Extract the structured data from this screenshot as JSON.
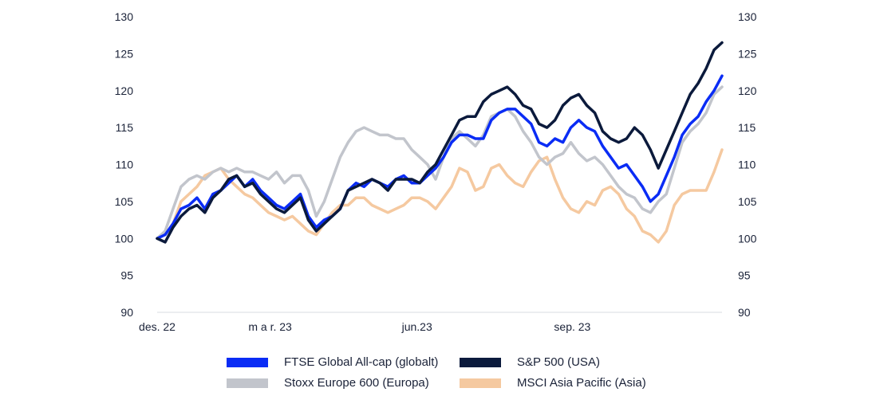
{
  "chart_data": {
    "type": "line",
    "title": "",
    "xlabel": "",
    "ylabel": "",
    "ylim": [
      90,
      130
    ],
    "yticks": [
      90,
      95,
      100,
      105,
      110,
      115,
      120,
      125,
      130
    ],
    "ytick_labels": [
      "90",
      "95",
      "100",
      "105",
      "110",
      "115",
      "120",
      "125",
      "130"
    ],
    "secondary_y_axis": true,
    "xtick_labels": [
      "des. 22",
      "m a r.  23",
      "jun.23",
      "sep. 23"
    ],
    "xtick_positions": [
      0,
      0.2,
      0.46,
      0.735
    ],
    "grid": false,
    "legend_position": "bottom",
    "x_count": 72,
    "series": [
      {
        "name": "FTSE Global All-cap (globalt)",
        "color": "#0a2cf5",
        "values": [
          100,
          100.5,
          102,
          104,
          104.5,
          105.5,
          104,
          106,
          106.5,
          107.5,
          108.5,
          107,
          108,
          106.5,
          105.5,
          104.5,
          104,
          105,
          106,
          103,
          101.5,
          102.5,
          103,
          104,
          106.5,
          107.5,
          107,
          108,
          107.5,
          107,
          108,
          108.5,
          107.5,
          107.5,
          108.5,
          109.5,
          111,
          113,
          114,
          114,
          113.5,
          113.5,
          116,
          117,
          117.5,
          117.5,
          116.5,
          115.5,
          113,
          112.5,
          113.5,
          113,
          115,
          116,
          115,
          114.5,
          112.5,
          111,
          109.5,
          110,
          108.5,
          107,
          105,
          106,
          108.5,
          111,
          114,
          115.5,
          116.5,
          118.5,
          120,
          122
        ]
      },
      {
        "name": "S&P 500 (USA)",
        "color": "#0b1a3c",
        "values": [
          100,
          99.5,
          101.5,
          103,
          104,
          104.5,
          103.5,
          105.5,
          106.5,
          108,
          108.5,
          107,
          107.5,
          106,
          105,
          104,
          103.5,
          104.5,
          105.5,
          102.5,
          101,
          102,
          103,
          104,
          106.5,
          107,
          107.5,
          108,
          107.5,
          106.5,
          108,
          108,
          108,
          107.5,
          109,
          110,
          112,
          114,
          116,
          116.5,
          116.5,
          118.5,
          119.5,
          120,
          120.5,
          119.5,
          118,
          117.5,
          115.5,
          115,
          116,
          118,
          119,
          119.5,
          118,
          117,
          114.5,
          113.5,
          113,
          113.5,
          115,
          114,
          112,
          109.5,
          112,
          114.5,
          117,
          119.5,
          121,
          123,
          125.5,
          126.5
        ]
      },
      {
        "name": "Stoxx Europe 600 (Europa)",
        "color": "#c2c5cc",
        "values": [
          100,
          101,
          104,
          107,
          108,
          108.5,
          108,
          109,
          109.5,
          109,
          109.5,
          109,
          109,
          108.5,
          108,
          109,
          107.5,
          108.5,
          108.5,
          106.5,
          103,
          105,
          108,
          111,
          113,
          114.5,
          115,
          114.5,
          114,
          114,
          113.5,
          113.5,
          112,
          111,
          110,
          108,
          111,
          113.5,
          114.5,
          113.5,
          112.5,
          114,
          116.5,
          117,
          117.5,
          116.5,
          114.5,
          113,
          111,
          110,
          111,
          111.5,
          113,
          111.5,
          110.5,
          111,
          110,
          108.5,
          107,
          106,
          105.5,
          104,
          103.5,
          105,
          106,
          109.5,
          113,
          114.5,
          115.5,
          117,
          119.5,
          120.5
        ]
      },
      {
        "name": "MSCI Asia Pacific (Asia)",
        "color": "#f5c9a0",
        "values": [
          100,
          100.5,
          102,
          105,
          106,
          107,
          108.5,
          109,
          109.5,
          108,
          107,
          106,
          105.5,
          104.5,
          103.5,
          103,
          102.5,
          103,
          102,
          101,
          100.5,
          102,
          103.5,
          104.5,
          104.5,
          105.5,
          105.5,
          104.5,
          104,
          103.5,
          104,
          104.5,
          105.5,
          105.5,
          105,
          104,
          105.5,
          107,
          109.5,
          109,
          106.5,
          107,
          109.5,
          110,
          108.5,
          107.5,
          107,
          109,
          110.5,
          111,
          108,
          105.5,
          104,
          103.5,
          105,
          104.5,
          106.5,
          107,
          106,
          104,
          103,
          101,
          100.5,
          99.5,
          101,
          104.5,
          106,
          106.5,
          106.5,
          106.5,
          109,
          112
        ]
      }
    ]
  },
  "legend": {
    "items": [
      {
        "label": "FTSE Global All-cap (globalt)",
        "color": "#0a2cf5"
      },
      {
        "label": "S&P 500 (USA)",
        "color": "#0b1a3c"
      },
      {
        "label": "Stoxx Europe 600 (Europa)",
        "color": "#c2c5cc"
      },
      {
        "label": "MSCI Asia Pacific (Asia)",
        "color": "#f5c9a0"
      }
    ]
  }
}
